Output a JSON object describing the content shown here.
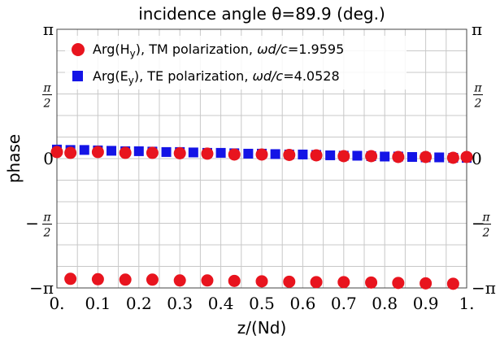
{
  "chart_data": {
    "type": "scatter",
    "title": "incidence angle θ=89.9 (deg.)",
    "xlabel": "z/(Nd)",
    "ylabel": "phase",
    "xlim": [
      0,
      1
    ],
    "ylim": [
      -3.14159,
      3.14159
    ],
    "grid": true,
    "legend_position": "top-left",
    "x_ticks": [
      {
        "value": 0,
        "label": "0."
      },
      {
        "value": 0.1,
        "label": "0.1"
      },
      {
        "value": 0.2,
        "label": "0.2"
      },
      {
        "value": 0.3,
        "label": "0.3"
      },
      {
        "value": 0.4,
        "label": "0.4"
      },
      {
        "value": 0.5,
        "label": "0.5"
      },
      {
        "value": 0.6,
        "label": "0.6"
      },
      {
        "value": 0.7,
        "label": "0.7"
      },
      {
        "value": 0.8,
        "label": "0.8"
      },
      {
        "value": 0.9,
        "label": "0.9"
      },
      {
        "value": 1.0,
        "label": "1."
      }
    ],
    "y_ticks": [
      {
        "value": 3.14159,
        "label": "π",
        "numerator": "",
        "denominator": ""
      },
      {
        "value": 1.5708,
        "label": "",
        "numerator": "π",
        "denominator": "2"
      },
      {
        "value": 0,
        "label": "0",
        "numerator": "",
        "denominator": ""
      },
      {
        "value": -1.5708,
        "label": "−",
        "numerator": "π",
        "denominator": "2"
      },
      {
        "value": -3.14159,
        "label": "−π",
        "numerator": "",
        "denominator": ""
      }
    ],
    "series": [
      {
        "name": "Arg(Hy), TM polarization, ωd/c=1.9595",
        "legend_parts": [
          "Arg(H",
          "y",
          "), TM polarization, ",
          "ωd/c",
          "=1.9595"
        ],
        "marker": "circle",
        "color": "#e8141e",
        "x": [
          0.0,
          0.033,
          0.1,
          0.167,
          0.233,
          0.3,
          0.367,
          0.433,
          0.5,
          0.567,
          0.633,
          0.7,
          0.767,
          0.833,
          0.9,
          0.967,
          1.0
        ],
        "y": [
          0.16,
          0.14,
          0.16,
          0.14,
          0.14,
          0.13,
          0.12,
          0.1,
          0.1,
          0.09,
          0.08,
          0.06,
          0.06,
          0.04,
          0.04,
          0.02,
          0.04
        ],
        "y_low_series_x": [
          0.033,
          0.1,
          0.167,
          0.233,
          0.3,
          0.367,
          0.433,
          0.5,
          0.567,
          0.633,
          0.7,
          0.767,
          0.833,
          0.9,
          0.967
        ],
        "y_low_series_y": [
          -2.92,
          -2.93,
          -2.94,
          -2.94,
          -2.96,
          -2.96,
          -2.97,
          -2.98,
          -2.99,
          -3.0,
          -3.0,
          -3.01,
          -3.02,
          -3.03,
          -3.04
        ]
      },
      {
        "name": "Arg(Ey), TE polarization, ωd/c=4.0528",
        "legend_parts": [
          "Arg(E",
          "y",
          "), TE polarization, ",
          "ωd/c",
          "=4.0528"
        ],
        "marker": "square",
        "color": "#1414e6",
        "x": [
          0.0,
          0.033,
          0.067,
          0.1,
          0.133,
          0.167,
          0.2,
          0.233,
          0.267,
          0.3,
          0.333,
          0.367,
          0.4,
          0.433,
          0.467,
          0.5,
          0.533,
          0.567,
          0.6,
          0.633,
          0.667,
          0.7,
          0.733,
          0.767,
          0.8,
          0.833,
          0.867,
          0.9,
          0.933,
          0.967,
          1.0
        ],
        "y": [
          0.22,
          0.21,
          0.21,
          0.2,
          0.19,
          0.18,
          0.18,
          0.17,
          0.16,
          0.16,
          0.15,
          0.14,
          0.14,
          0.13,
          0.12,
          0.12,
          0.11,
          0.1,
          0.1,
          0.09,
          0.08,
          0.07,
          0.07,
          0.06,
          0.05,
          0.05,
          0.04,
          0.03,
          0.03,
          0.02,
          0.02
        ]
      }
    ]
  }
}
